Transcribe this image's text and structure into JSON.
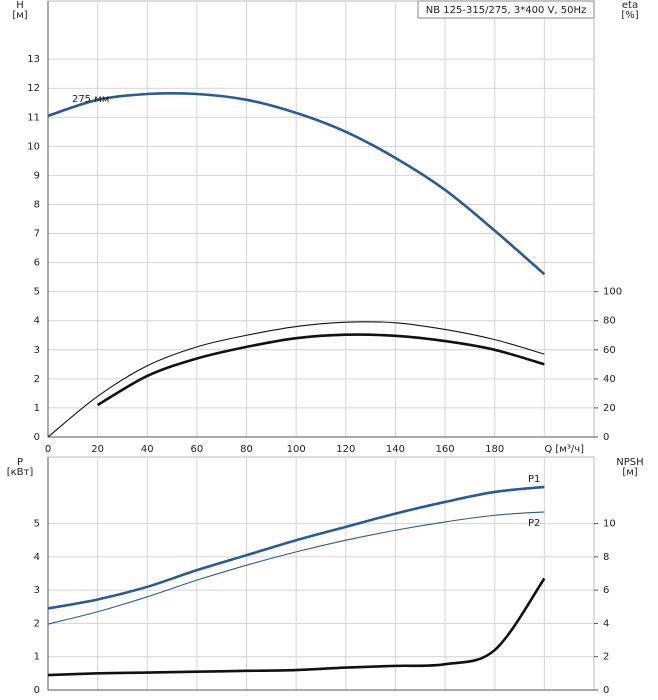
{
  "chart_data": [
    {
      "type": "line",
      "title": "NB 125-315/275, 3*400 V, 50Hz",
      "ylabel": [
        "H",
        "[м]"
      ],
      "y2label": [
        "eta",
        "[%]"
      ],
      "x": [
        0,
        20,
        40,
        60,
        80,
        100,
        120,
        140,
        160,
        180,
        200
      ],
      "xlim": [
        0,
        220
      ],
      "xticks": [
        0,
        20,
        40,
        60,
        80,
        100,
        120,
        140,
        160,
        180,
        {
          "value": 200,
          "label": "Q [м³/ч]"
        }
      ],
      "ylim": [
        0,
        15
      ],
      "yticks": [
        0,
        1,
        2,
        3,
        4,
        5,
        6,
        7,
        8,
        9,
        10,
        11,
        12,
        13
      ],
      "y2lim": [
        0,
        300
      ],
      "y2ticks": [
        0,
        20,
        40,
        60,
        80,
        100
      ],
      "grid": true,
      "series": [
        {
          "name": "275 мм",
          "label_at": "start",
          "color": "#2a5b94",
          "style": "thick",
          "values": [
            11.05,
            11.6,
            11.8,
            11.8,
            11.6,
            11.15,
            10.5,
            9.6,
            8.5,
            7.1,
            5.6
          ]
        },
        {
          "color": "#111111",
          "style": "thin",
          "axis": "y2",
          "values": [
            0,
            28,
            49,
            62,
            70,
            76,
            79,
            78.6,
            74,
            67,
            57
          ]
        },
        {
          "color": "#111111",
          "style": "thick",
          "axis": "y2",
          "values": [
            null,
            22,
            42,
            54,
            62,
            68,
            70.4,
            69.6,
            66,
            60,
            50
          ]
        }
      ]
    },
    {
      "type": "line",
      "ylabel": [
        "P",
        "[кВт]"
      ],
      "y2label": [
        "NPSH",
        "[м]"
      ],
      "x": [
        0,
        20,
        40,
        60,
        80,
        100,
        120,
        140,
        160,
        180,
        200
      ],
      "xlim": [
        0,
        220
      ],
      "xticks": [
        0,
        20,
        40,
        60,
        80,
        100,
        120,
        140,
        160,
        180,
        200
      ],
      "ylim": [
        0,
        7
      ],
      "yticks": [
        0,
        1,
        2,
        3,
        4,
        5
      ],
      "y2lim": [
        0,
        14
      ],
      "y2ticks": [
        0,
        2,
        4,
        6,
        8,
        10
      ],
      "grid": true,
      "series": [
        {
          "name": "P1",
          "label_at": "end",
          "color": "#2a5b94",
          "style": "thick",
          "values": [
            2.45,
            2.72,
            3.1,
            3.6,
            4.05,
            4.5,
            4.9,
            5.3,
            5.65,
            5.95,
            6.1
          ]
        },
        {
          "name": "P2",
          "label_at": "end",
          "color": "#2a5b94",
          "style": "thin",
          "values": [
            1.98,
            2.35,
            2.8,
            3.3,
            3.75,
            4.15,
            4.5,
            4.8,
            5.05,
            5.25,
            5.35
          ]
        },
        {
          "color": "#111111",
          "style": "thick",
          "axis": "y2",
          "values": [
            0.9,
            1.0,
            1.05,
            1.1,
            1.15,
            1.2,
            1.35,
            1.45,
            1.55,
            2.4,
            6.7
          ]
        }
      ]
    }
  ]
}
